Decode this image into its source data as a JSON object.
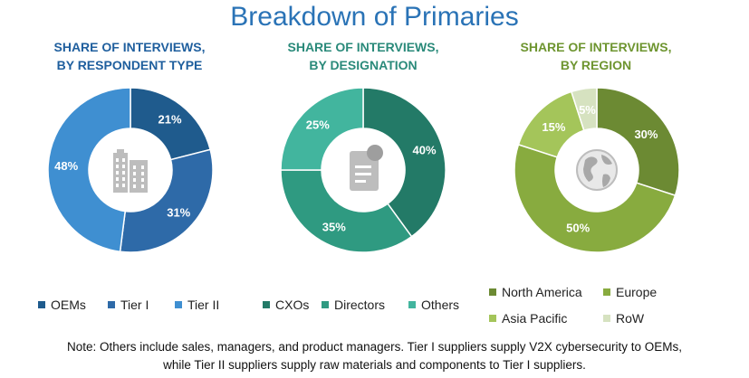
{
  "title": "Breakdown of Primaries",
  "colors": {
    "title": "#2a73b6",
    "chart1_title": "#1f5f9e",
    "chart2_title": "#2a8a7a",
    "chart3_title": "#6e9530"
  },
  "chart_data": [
    {
      "type": "pie",
      "title_line1": "SHARE OF INTERVIEWS,",
      "title_line2": "BY RESPONDENT TYPE",
      "center_icon": "building-icon",
      "series": [
        {
          "name": "OEMs",
          "value": 21,
          "label": "21%",
          "color": "#1f5b8d"
        },
        {
          "name": "Tier I",
          "value": 31,
          "label": "31%",
          "color": "#2e6aa8"
        },
        {
          "name": "Tier II",
          "value": 48,
          "label": "48%",
          "color": "#3f8fd1"
        }
      ]
    },
    {
      "type": "pie",
      "title_line1": "SHARE OF INTERVIEWS,",
      "title_line2": "BY DESIGNATION",
      "center_icon": "document-icon",
      "series": [
        {
          "name": "CXOs",
          "value": 40,
          "label": "40%",
          "color": "#237a67"
        },
        {
          "name": "Directors",
          "value": 35,
          "label": "35%",
          "color": "#2f9a81"
        },
        {
          "name": "Others",
          "value": 25,
          "label": "25%",
          "color": "#42b59e"
        }
      ]
    },
    {
      "type": "pie",
      "title_line1": "SHARE OF INTERVIEWS,",
      "title_line2": "BY REGION",
      "center_icon": "globe-icon",
      "series": [
        {
          "name": "North America",
          "value": 30,
          "label": "30%",
          "color": "#6c8a33"
        },
        {
          "name": "Europe",
          "value": 50,
          "label": "50%",
          "color": "#88ab3f"
        },
        {
          "name": "Asia Pacific",
          "value": 15,
          "label": "15%",
          "color": "#a4c55a"
        },
        {
          "name": "RoW",
          "value": 5,
          "label": "5%",
          "color": "#d6e2c0"
        }
      ]
    }
  ],
  "note_line1": "Note: Others include sales, managers, and product managers. Tier I suppliers supply V2X cybersecurity to OEMs,",
  "note_line2": "while Tier II suppliers supply raw materials and components to Tier I suppliers."
}
